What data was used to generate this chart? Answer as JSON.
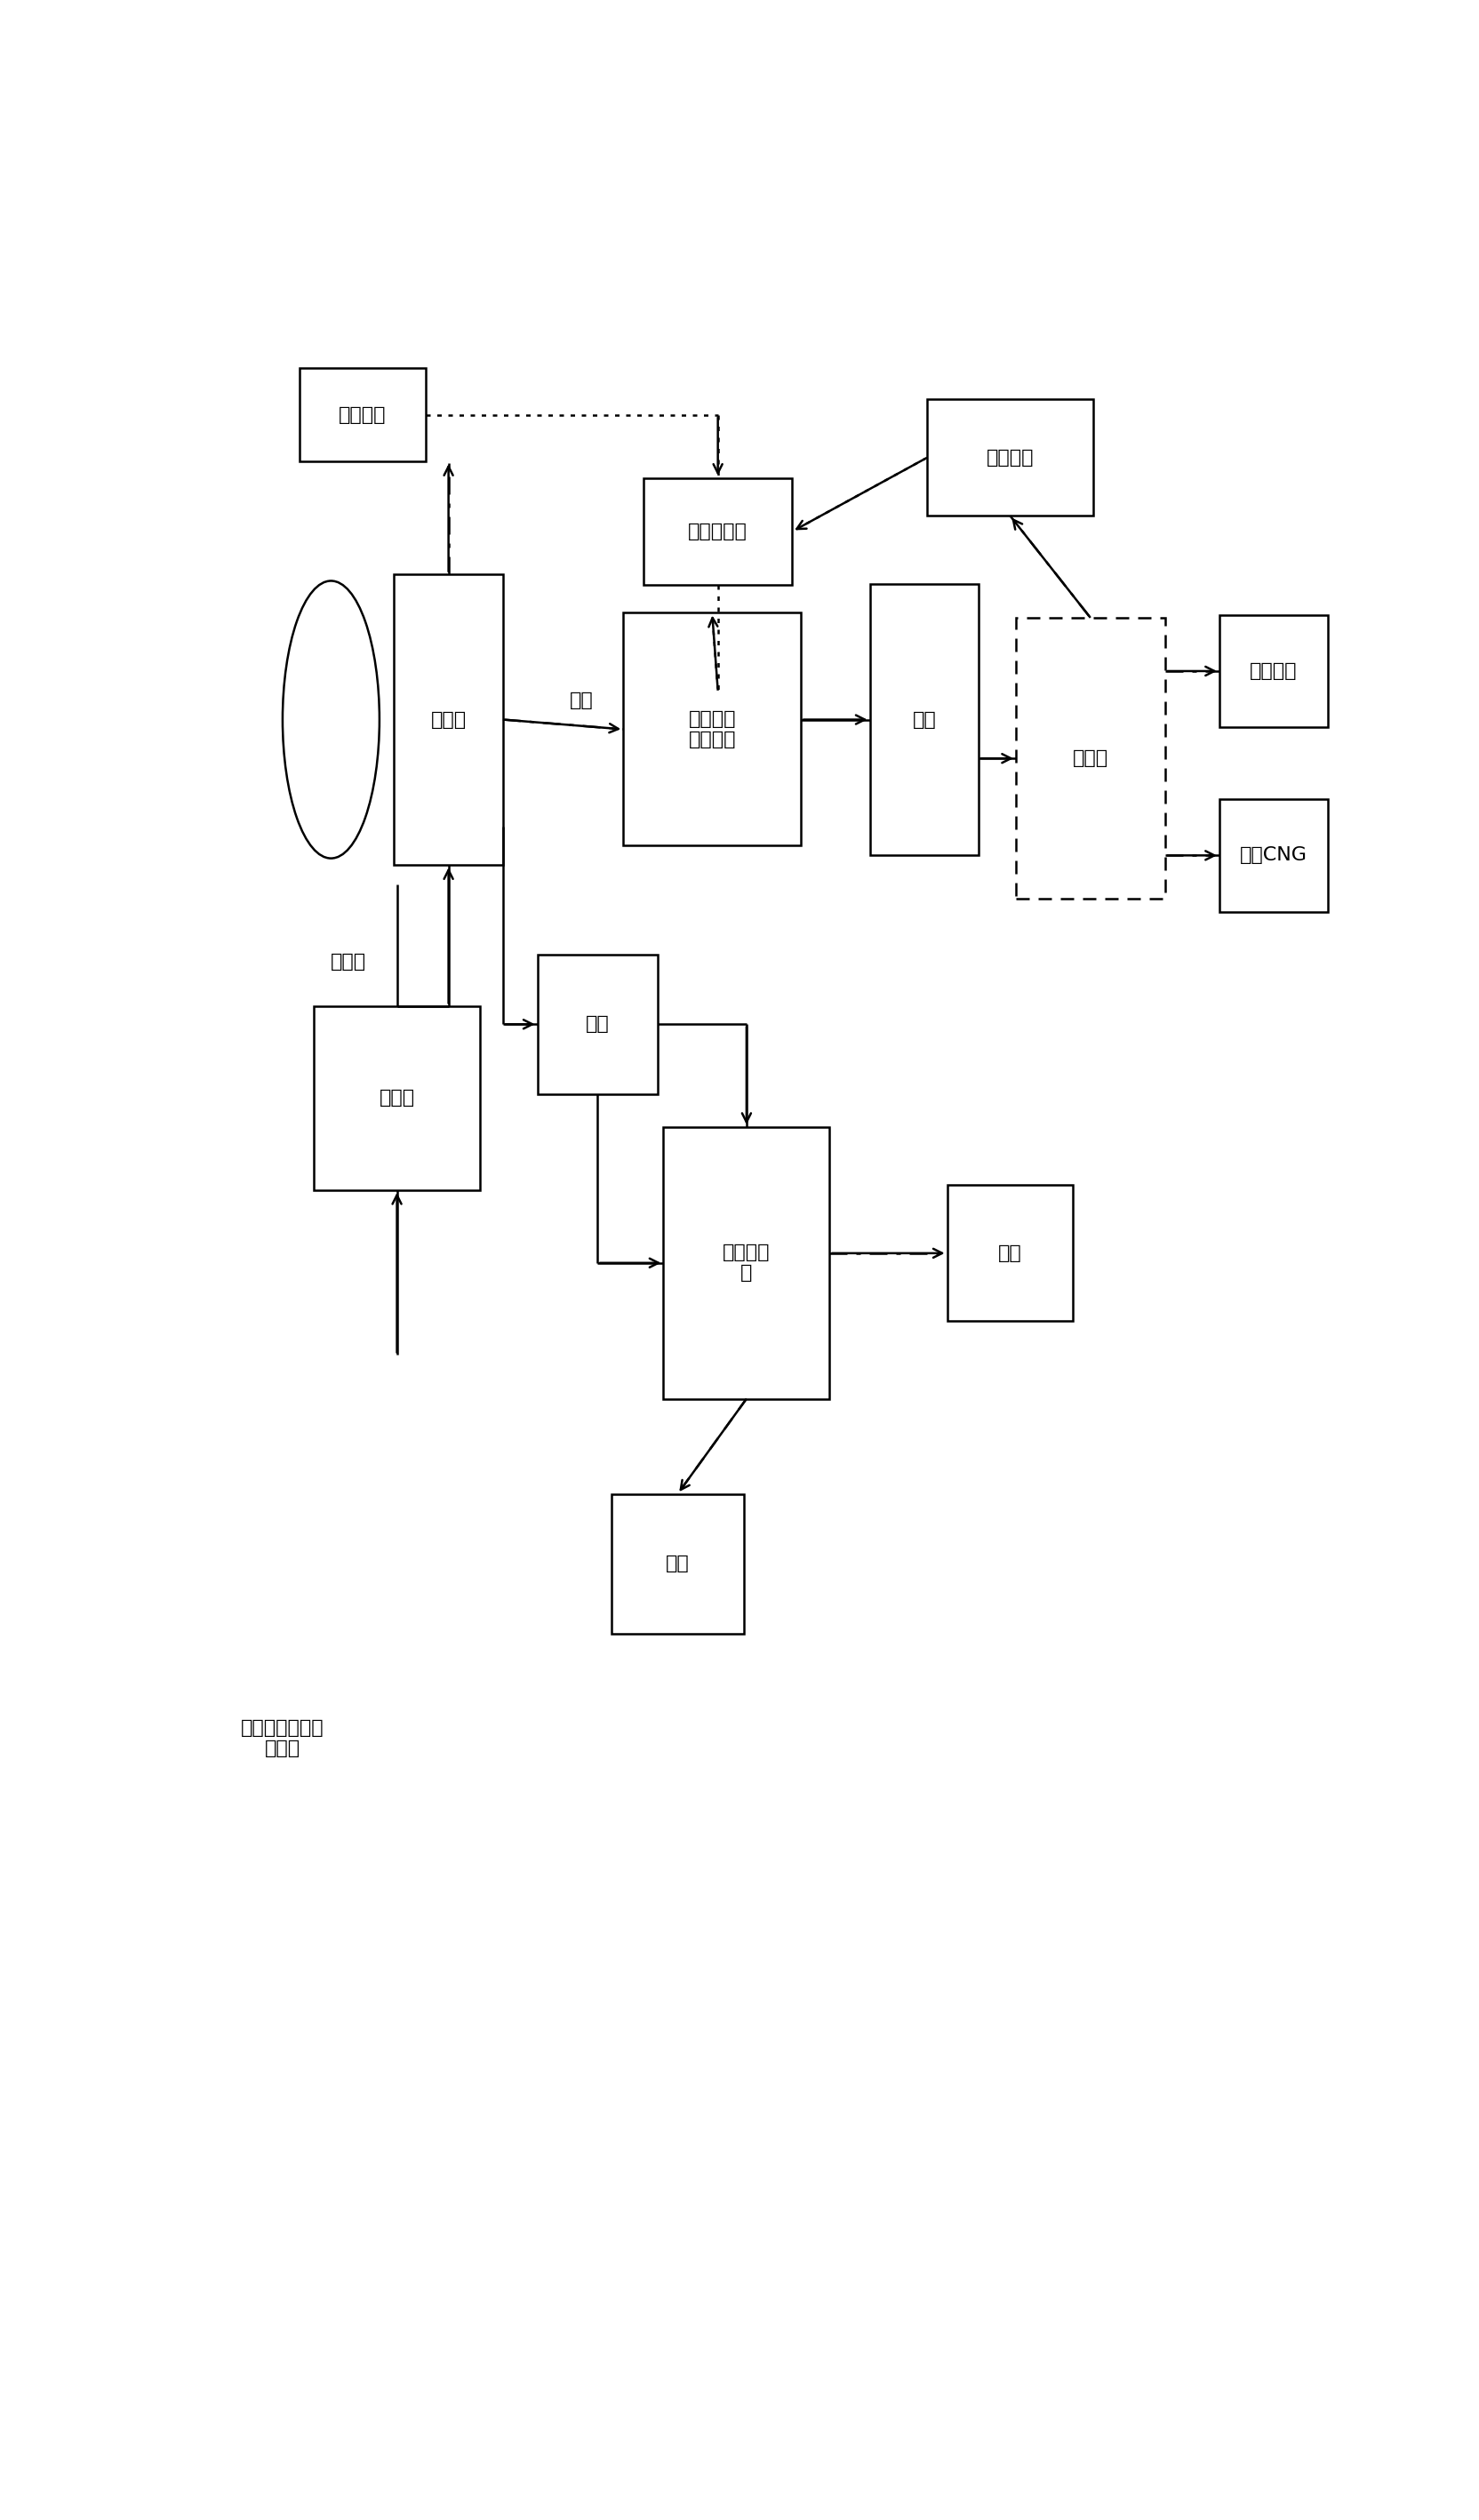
{
  "fig_width": 16.64,
  "fig_height": 28.35,
  "bg_color": "#ffffff",
  "positions": {
    "torch": [
      0.155,
      0.942,
      0.11,
      0.048
    ],
    "hotwater": [
      0.465,
      0.882,
      0.13,
      0.055
    ],
    "boiler": [
      0.72,
      0.92,
      0.145,
      0.06
    ],
    "reactor": [
      0.23,
      0.785,
      0.095,
      0.15
    ],
    "purify": [
      0.46,
      0.78,
      0.155,
      0.12
    ],
    "tank": [
      0.645,
      0.785,
      0.095,
      0.14
    ],
    "gasstation": [
      0.79,
      0.765,
      0.13,
      0.145
    ],
    "civil": [
      0.95,
      0.81,
      0.095,
      0.058
    ],
    "cng": [
      0.95,
      0.715,
      0.095,
      0.058
    ],
    "blending": [
      0.185,
      0.59,
      0.145,
      0.095
    ],
    "outlet": [
      0.36,
      0.628,
      0.105,
      0.072
    ],
    "separator": [
      0.49,
      0.505,
      0.145,
      0.14
    ],
    "liquid": [
      0.72,
      0.51,
      0.11,
      0.07
    ],
    "residue": [
      0.43,
      0.35,
      0.115,
      0.072
    ]
  },
  "styles": {
    "torch": "solid",
    "hotwater": "solid",
    "boiler": "solid",
    "reactor": "solid",
    "purify": "solid",
    "tank": "solid",
    "gasstation": "dashed",
    "civil": "solid",
    "cng": "solid",
    "blending": "solid",
    "outlet": "solid",
    "separator": "solid",
    "liquid": "solid",
    "residue": "solid"
  },
  "labels": {
    "torch": "沼气火炬",
    "hotwater": "热水循环泵",
    "boiler": "沼气锅炉",
    "reactor": "反应器",
    "purify": "沼气提纯\n净化单元",
    "tank": "气柜",
    "gasstation": "加气站",
    "civil": "民用燃料",
    "cng": "车用CNG",
    "blending": "调配池",
    "outlet": "出料",
    "separator": "固液分离\n机",
    "liquid": "沼液",
    "residue": "沼渣"
  },
  "font_size": 16,
  "lw": 1.8,
  "circle_r": 0.065,
  "text_labels": {
    "input": [
      0.085,
      0.26,
      "马铃薯渣、废水\n接种物"
    ],
    "screw": [
      0.143,
      0.66,
      "螺杆泵"
    ],
    "biogas": [
      0.346,
      0.795,
      "沼气"
    ]
  }
}
